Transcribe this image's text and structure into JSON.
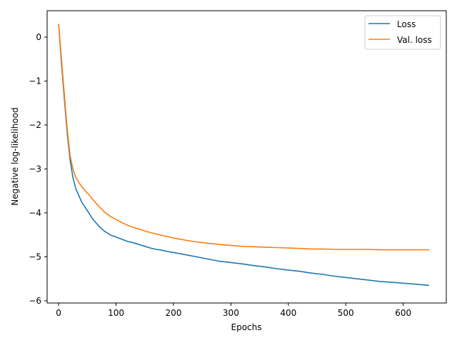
{
  "chart_data": {
    "type": "line",
    "title": "",
    "xlabel": "Epochs",
    "ylabel": "Negative log-likelihood",
    "xlim": [
      -20,
      675
    ],
    "ylim": [
      -6.05,
      0.6
    ],
    "xticks": [
      0,
      100,
      200,
      300,
      400,
      500,
      600
    ],
    "xtick_labels": [
      "0",
      "100",
      "200",
      "300",
      "400",
      "500",
      "600"
    ],
    "yticks": [
      0,
      -1,
      -2,
      -3,
      -4,
      -5,
      -6
    ],
    "ytick_labels": [
      "0",
      "−1",
      "−2",
      "−3",
      "−4",
      "−5",
      "−6"
    ],
    "grid": false,
    "legend_position": "upper right",
    "series": [
      {
        "name": "Loss",
        "color": "#1f77b4",
        "x": [
          0,
          5,
          10,
          15,
          20,
          25,
          30,
          35,
          40,
          45,
          50,
          55,
          60,
          70,
          80,
          90,
          100,
          110,
          120,
          130,
          140,
          150,
          160,
          170,
          180,
          190,
          200,
          220,
          240,
          260,
          280,
          300,
          320,
          340,
          360,
          380,
          400,
          420,
          440,
          460,
          480,
          500,
          520,
          540,
          560,
          580,
          600,
          620,
          645
        ],
        "y": [
          0.3,
          -0.6,
          -1.4,
          -2.2,
          -2.8,
          -3.2,
          -3.45,
          -3.6,
          -3.75,
          -3.85,
          -3.95,
          -4.05,
          -4.15,
          -4.3,
          -4.42,
          -4.5,
          -4.55,
          -4.6,
          -4.65,
          -4.68,
          -4.72,
          -4.76,
          -4.8,
          -4.83,
          -4.85,
          -4.88,
          -4.9,
          -4.95,
          -5.0,
          -5.05,
          -5.1,
          -5.13,
          -5.16,
          -5.2,
          -5.23,
          -5.27,
          -5.3,
          -5.33,
          -5.37,
          -5.4,
          -5.44,
          -5.47,
          -5.5,
          -5.53,
          -5.56,
          -5.58,
          -5.6,
          -5.62,
          -5.65
        ]
      },
      {
        "name": "Val. loss",
        "color": "#ff7f0e",
        "x": [
          0,
          5,
          10,
          15,
          20,
          25,
          30,
          35,
          40,
          45,
          50,
          55,
          60,
          70,
          80,
          90,
          100,
          110,
          120,
          130,
          140,
          150,
          160,
          170,
          180,
          190,
          200,
          220,
          240,
          260,
          280,
          300,
          320,
          340,
          360,
          380,
          400,
          420,
          440,
          460,
          480,
          500,
          520,
          540,
          560,
          580,
          600,
          620,
          645
        ],
        "y": [
          0.3,
          -0.5,
          -1.3,
          -2.1,
          -2.7,
          -3.0,
          -3.2,
          -3.3,
          -3.4,
          -3.48,
          -3.55,
          -3.62,
          -3.7,
          -3.85,
          -3.98,
          -4.08,
          -4.15,
          -4.22,
          -4.28,
          -4.33,
          -4.37,
          -4.41,
          -4.45,
          -4.48,
          -4.51,
          -4.54,
          -4.57,
          -4.62,
          -4.66,
          -4.69,
          -4.72,
          -4.74,
          -4.76,
          -4.77,
          -4.78,
          -4.79,
          -4.8,
          -4.81,
          -4.82,
          -4.82,
          -4.83,
          -4.83,
          -4.83,
          -4.83,
          -4.84,
          -4.84,
          -4.84,
          -4.84,
          -4.84
        ]
      }
    ]
  }
}
